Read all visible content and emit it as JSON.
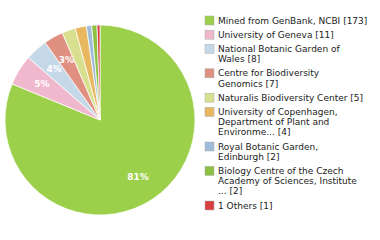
{
  "chart_data": {
    "type": "pie",
    "categories": [
      "Mined from GenBank, NCBI [173]",
      "University of Geneva [11]",
      "National Botanic Garden of\nWales [8]",
      "Centre for Biodiversity\nGenomics [7]",
      "Naturalis Biodiversity Center [5]",
      "University of Copenhagen,\nDepartment of Plant and\nEnvironme... [4]",
      "Royal Botanic Garden,\nEdinburgh [2]",
      "Biology Centre of the Czech\nAcademy of Sciences, Institute\n... [2]",
      "1 Others [1]"
    ],
    "values": [
      81.2,
      5.2,
      3.8,
      3.3,
      2.3,
      1.9,
      0.9,
      0.9,
      0.5
    ],
    "value_labels": [
      "81%",
      "5%",
      "4%",
      "3%",
      null,
      null,
      null,
      null,
      null
    ],
    "colors": [
      "#9dd04a",
      "#f0b8cc",
      "#c5d8e8",
      "#e09080",
      "#d8e090",
      "#e8b860",
      "#a0bcd8",
      "#8cc040",
      "#d84040"
    ],
    "data_labels": true,
    "legend": "right"
  }
}
